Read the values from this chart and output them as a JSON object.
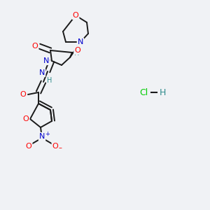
{
  "bg_color": "#f0f2f5",
  "bond_color": "#1a1a1a",
  "atom_colors": {
    "O": "#ff0000",
    "N": "#0000cc",
    "H": "#2e8b8b",
    "Cl": "#00cc00",
    "C": "#1a1a1a",
    "plus": "#0000cc",
    "minus": "#ff0000"
  }
}
